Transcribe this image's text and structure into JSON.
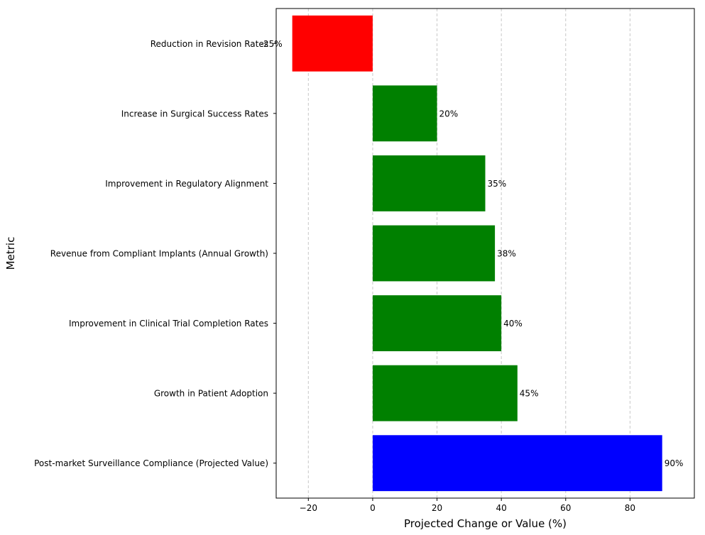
{
  "chart_data": {
    "type": "bar",
    "orientation": "horizontal",
    "xlabel": "Projected Change or Value (%)",
    "ylabel": "Metric",
    "xlim": [
      -30,
      100
    ],
    "xticks": [
      -20,
      0,
      20,
      40,
      60,
      80
    ],
    "grid": "x-dashed",
    "categories": [
      "Reduction in Revision Rates",
      "Increase in Surgical Success Rates",
      "Improvement in Regulatory Alignment",
      "Revenue from Compliant Implants (Annual Growth)",
      "Improvement in Clinical Trial Completion Rates",
      "Growth in Patient Adoption",
      "Post-market Surveillance Compliance (Projected Value)"
    ],
    "values": [
      -25,
      20,
      35,
      38,
      40,
      45,
      90
    ],
    "data_labels": [
      "-25%",
      "20%",
      "35%",
      "38%",
      "40%",
      "45%",
      "90%"
    ],
    "colors": [
      "#ff0000",
      "#008000",
      "#008000",
      "#008000",
      "#008000",
      "#008000",
      "#0000ff"
    ]
  }
}
